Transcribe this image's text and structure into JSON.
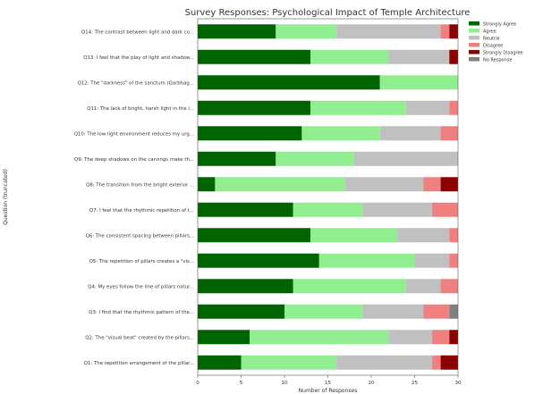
{
  "chart_data": {
    "type": "bar",
    "orientation": "horizontal",
    "stacked": true,
    "title": "Survey Responses: Psychological Impact of Temple Architecture",
    "xlabel": "Number of Responses",
    "ylabel": "Question (truncated)",
    "xlim": [
      0,
      30
    ],
    "xticks": [
      0,
      5,
      10,
      15,
      20,
      25,
      30
    ],
    "categories": [
      "Q14: The contrast between light and dark co...",
      "Q13: I feel that the play of light and shadow...",
      "Q12: The \"darkness\" of the sanctum (Garbhag...",
      "Q11: The lack of bright, harsh light in the i...",
      "Q10: The low light environment reduces my urg...",
      "Q9: The deep shadows on the carvings make th...",
      "Q8: The transition from the bright exterior ...",
      "Q7: I feel that the rhythmic repetition of t...",
      "Q6: The consistent spacing between pillars...",
      "Q5: The repetition of pillars creates a \"vis...",
      "Q4: My eyes follow the line of pillars natur...",
      "Q3: I find that the rhythmic pattern of the...",
      "Q2: The \"visual beat\" created by the pillars...",
      "Q1: The repetition arrangement of the pillar..."
    ],
    "series": [
      {
        "name": "Strongly Agree",
        "color": "#006400",
        "values": [
          9,
          13,
          21,
          13,
          12,
          9,
          2,
          11,
          13,
          14,
          11,
          10,
          6,
          5
        ]
      },
      {
        "name": "Agree",
        "color": "#90ee90",
        "values": [
          7,
          9,
          9,
          11,
          9,
          9,
          15,
          8,
          10,
          11,
          13,
          9,
          16,
          11
        ]
      },
      {
        "name": "Neutral",
        "color": "#c0c0c0",
        "values": [
          12,
          7,
          0,
          5,
          7,
          12,
          9,
          8,
          6,
          4,
          4,
          7,
          5,
          11
        ]
      },
      {
        "name": "Disagree",
        "color": "#f08080",
        "values": [
          1,
          0,
          0,
          1,
          2,
          0,
          2,
          3,
          1,
          1,
          2,
          3,
          2,
          1
        ]
      },
      {
        "name": "Strongly Disagree",
        "color": "#8b0000",
        "values": [
          1,
          1,
          0,
          0,
          0,
          0,
          2,
          0,
          0,
          0,
          0,
          0,
          1,
          2
        ]
      },
      {
        "name": "No Response",
        "color": "#808080",
        "values": [
          0,
          0,
          0,
          0,
          0,
          0,
          0,
          0,
          0,
          0,
          0,
          1,
          0,
          0
        ]
      }
    ],
    "legend": "top-right",
    "grid": false
  }
}
